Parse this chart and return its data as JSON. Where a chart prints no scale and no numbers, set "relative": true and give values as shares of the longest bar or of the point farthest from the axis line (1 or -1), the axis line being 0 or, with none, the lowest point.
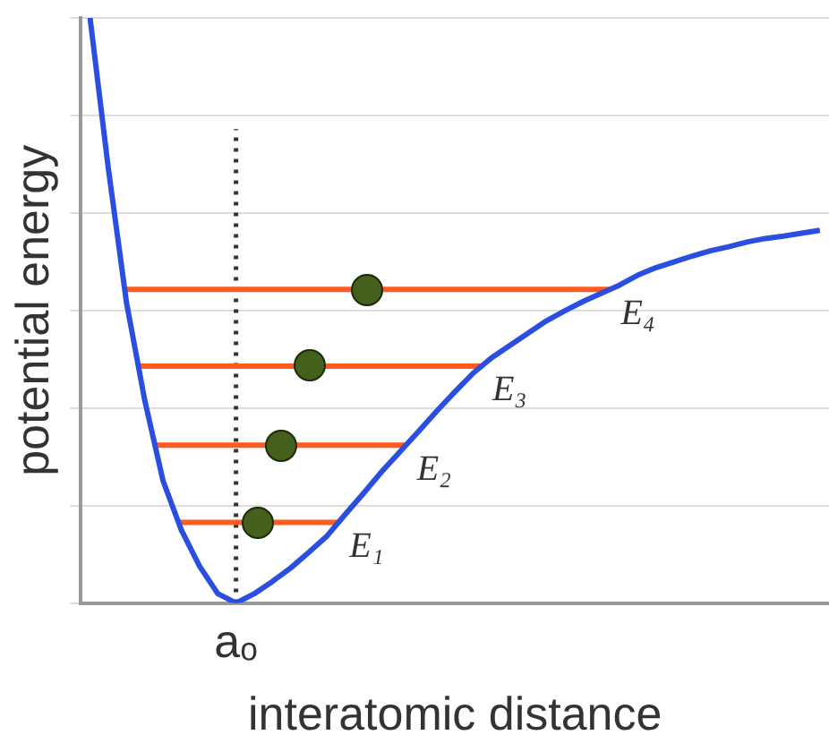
{
  "chart_data": {
    "type": "line",
    "xlabel": "interatomic distance",
    "ylabel": "potential energy",
    "relative": true,
    "tick_labels": false,
    "grid": "y",
    "legend": false,
    "categories": [
      null,
      null,
      null,
      null,
      null,
      null,
      null,
      null,
      null,
      null,
      null,
      null,
      null,
      null,
      null,
      null,
      null,
      null,
      null,
      null,
      null,
      null,
      null,
      null,
      null,
      null,
      null,
      null,
      null,
      null,
      null,
      null,
      null,
      null,
      null,
      null,
      null,
      null,
      null,
      null,
      null
    ],
    "annotations": [
      "aₒ"
    ],
    "ref_lines": [
      {
        "axis": "y",
        "value": 0.138,
        "label": "E₁",
        "color": "#ff5a1f"
      },
      {
        "axis": "y",
        "value": 0.27,
        "label": "E₂",
        "color": "#ff5a1f"
      },
      {
        "axis": "y",
        "value": 0.405,
        "label": "E₃",
        "color": "#ff5a1f"
      },
      {
        "axis": "y",
        "value": 0.536,
        "label": "E₄",
        "color": "#ff5a1f"
      }
    ],
    "series": [
      {
        "color": "#2a4fe0",
        "marker": "none",
        "values": [
          1,
          0.743,
          0.513,
          0.346,
          0.209,
          0.125,
          0.063,
          0.016,
          0,
          0.016,
          0.037,
          0.06,
          0.087,
          0.115,
          0.152,
          0.188,
          0.225,
          0.259,
          0.293,
          0.328,
          0.361,
          0.393,
          0.419,
          0.44,
          0.461,
          0.482,
          0.499,
          0.515,
          0.529,
          0.543,
          0.56,
          0.573,
          0.583,
          0.593,
          0.602,
          0.609,
          0.617,
          0.623,
          0.627,
          0.632,
          0.637
        ]
      }
    ]
  }
}
